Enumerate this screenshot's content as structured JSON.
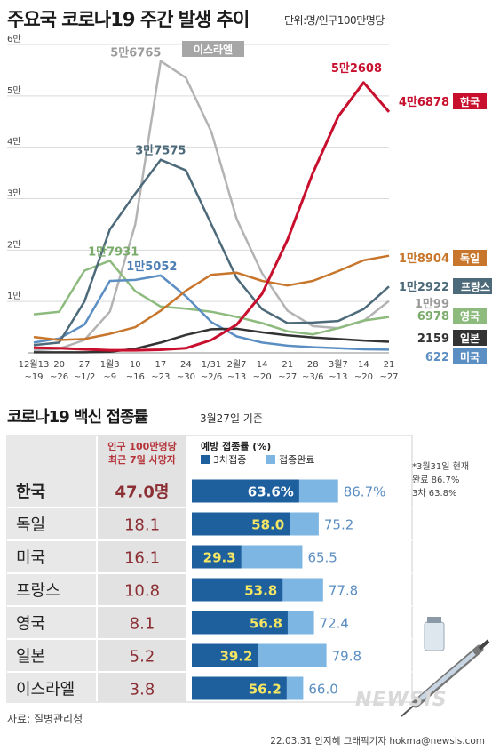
{
  "title": "주요국 코로나19 주간 발생 추이",
  "unit_label": "단위:명/인구100만명당",
  "vaccine_title": "코로나19 백신 접종률",
  "vaccine_date": "3월27일 기준",
  "note": [
    "*3월31일 현재",
    "완료 86.7%",
    "3차 63.8%"
  ],
  "source": "자료: 질병관리청",
  "credit": "22.03.31 안지혜 그래픽기자 hokma@newsis.com",
  "watermark": "NEWSIS",
  "chart_data": [
    {
      "type": "line",
      "title": "주요국 코로나19 주간 발생 추이",
      "ylabel": "단위:명/인구100만명당",
      "ylim": [
        0,
        60000
      ],
      "yticks": [
        10000,
        20000,
        30000,
        40000,
        50000,
        60000
      ],
      "ytick_labels": [
        "1만",
        "2만",
        "3만",
        "4만",
        "5만",
        "6만"
      ],
      "xtick_top": [
        "12월13",
        "20",
        "27",
        "1월3",
        "10",
        "17",
        "24",
        "1/31",
        "2월7",
        "14",
        "21",
        "28",
        "3월7",
        "14",
        "21"
      ],
      "xtick_bottom": [
        "~19",
        "~26",
        "~1/2",
        "~9",
        "~16",
        "~23",
        "~30",
        "~2/6",
        "~13",
        "~20",
        "~27",
        "~3/6",
        "~13",
        "~20",
        "~27"
      ],
      "grid": true,
      "series": [
        {
          "name": "한국",
          "color": "#c8102e",
          "end_label": "4만6878",
          "annotation": "5만2608",
          "values": [
            1000,
            900,
            700,
            500,
            500,
            600,
            900,
            2500,
            5500,
            11500,
            22000,
            35000,
            46000,
            52608,
            46878
          ]
        },
        {
          "name": "독일",
          "color": "#c8762b",
          "end_label": "1만8904",
          "values": [
            3100,
            2500,
            2700,
            3700,
            5000,
            8200,
            12100,
            15200,
            15600,
            14000,
            13100,
            14000,
            15900,
            18000,
            18904
          ]
        },
        {
          "name": "프랑스",
          "color": "#4d6a7a",
          "end_label": "1만2922",
          "annotation": "3만7575",
          "values": [
            1500,
            2000,
            10000,
            24000,
            31000,
            37575,
            35500,
            25000,
            14500,
            8500,
            5800,
            5900,
            6200,
            8500,
            12922
          ]
        },
        {
          "name": "이스라엘",
          "color": "#b3b3b3",
          "end_label": "1만99",
          "annotation": "5만6765",
          "values": [
            500,
            800,
            2500,
            8000,
            25000,
            56765,
            53500,
            43000,
            26000,
            15500,
            8200,
            5200,
            4800,
            6200,
            10099
          ]
        },
        {
          "name": "영국",
          "color": "#8dbb7e",
          "end_label": "6978",
          "annotation": "1만7931",
          "values": [
            7500,
            8000,
            16000,
            17931,
            12000,
            9000,
            8600,
            8000,
            7000,
            5800,
            4200,
            3600,
            4800,
            6300,
            6978
          ]
        },
        {
          "name": "일본",
          "color": "#333333",
          "end_label": "2159",
          "values": [
            100,
            100,
            100,
            200,
            800,
            2000,
            3500,
            4600,
            4700,
            4000,
            3400,
            3000,
            2700,
            2400,
            2159
          ]
        },
        {
          "name": "미국",
          "color": "#5b8ec2",
          "end_label": "622",
          "annotation": "1만5052",
          "values": [
            2000,
            2800,
            5500,
            14000,
            14200,
            15052,
            11000,
            6000,
            3200,
            2000,
            1400,
            1100,
            900,
            700,
            622
          ]
        }
      ]
    },
    {
      "type": "bar",
      "title": "코로나19 백신 접종률",
      "col_death": [
        "인구 100만명당",
        "최근 7일 사망자"
      ],
      "col_vaccine": "예방 접종률 (%)",
      "legend": [
        {
          "label": "3차접종",
          "color": "#1e5f9e"
        },
        {
          "label": "접종완료",
          "color": "#7eb6e3"
        }
      ],
      "xlim": [
        0,
        100
      ],
      "rows": [
        {
          "country": "한국",
          "deaths": "47.0명",
          "booster": 63.6,
          "booster_label": "63.6%",
          "complete": 86.7,
          "complete_label": "86.7%"
        },
        {
          "country": "독일",
          "deaths": "18.1",
          "booster": 58.0,
          "booster_label": "58.0",
          "complete": 75.2,
          "complete_label": "75.2"
        },
        {
          "country": "미국",
          "deaths": "16.1",
          "booster": 29.3,
          "booster_label": "29.3",
          "complete": 65.5,
          "complete_label": "65.5"
        },
        {
          "country": "프랑스",
          "deaths": "10.8",
          "booster": 53.8,
          "booster_label": "53.8",
          "complete": 77.8,
          "complete_label": "77.8"
        },
        {
          "country": "영국",
          "deaths": "8.1",
          "booster": 56.8,
          "booster_label": "56.8",
          "complete": 72.4,
          "complete_label": "72.4"
        },
        {
          "country": "일본",
          "deaths": "5.2",
          "booster": 39.2,
          "booster_label": "39.2",
          "complete": 79.8,
          "complete_label": "79.8"
        },
        {
          "country": "이스라엘",
          "deaths": "3.8",
          "booster": 56.2,
          "booster_label": "56.2",
          "complete": 66.0,
          "complete_label": "66.0"
        }
      ]
    }
  ]
}
